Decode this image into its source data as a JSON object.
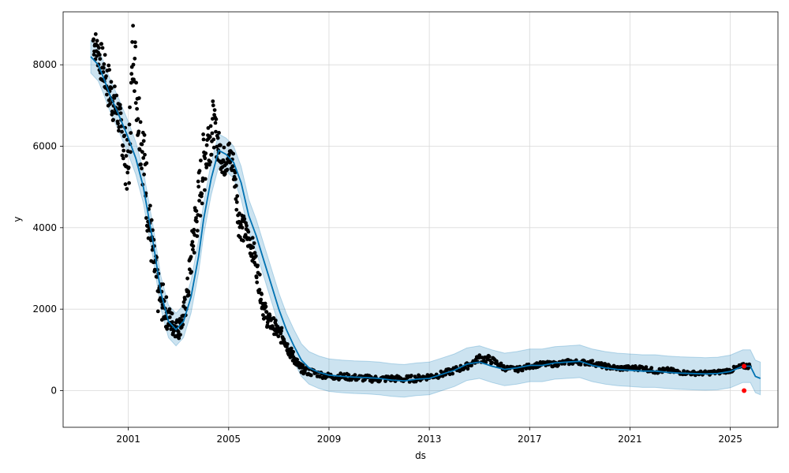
{
  "chart_data": {
    "type": "scatter",
    "xlabel": "ds",
    "ylabel": "y",
    "xlim": [
      1998.4,
      2026.9
    ],
    "ylim": [
      -900,
      9300
    ],
    "x_ticks": [
      2001,
      2005,
      2009,
      2013,
      2017,
      2021,
      2025
    ],
    "x_tick_labels": [
      "2001",
      "2005",
      "2009",
      "2013",
      "2017",
      "2021",
      "2025"
    ],
    "y_ticks": [
      0,
      2000,
      4000,
      6000,
      8000
    ],
    "y_tick_labels": [
      "0",
      "2000",
      "4000",
      "6000",
      "8000"
    ],
    "grid": true,
    "colors": {
      "observed": "#000000",
      "forecast": "#0072B2",
      "interval": "#0072B2",
      "highlight": "#ff0000"
    },
    "series": [
      {
        "kind": "observed",
        "x": [
          1999.6,
          1999.8,
          2000.0,
          2000.2,
          2000.4,
          2000.6,
          2000.8,
          2001.0,
          2001.2,
          2001.4,
          2001.6,
          2001.8,
          2002.0,
          2002.2,
          2002.4,
          2002.6,
          2002.8,
          2003.0,
          2003.2,
          2003.4,
          2003.6,
          2003.8,
          2004.0,
          2004.2,
          2004.4,
          2004.6,
          2004.8,
          2005.0,
          2005.2,
          2005.4,
          2005.6,
          2005.8,
          2006.0,
          2006.2,
          2006.4,
          2006.6,
          2006.8,
          2007.0,
          2007.2,
          2007.4,
          2007.6,
          2007.8,
          2008.0,
          2008.5,
          2009.0,
          2009.5,
          2010.0,
          2010.5,
          2011.0,
          2011.5,
          2012.0,
          2012.5,
          2013.0,
          2013.5,
          2014.0,
          2014.5,
          2015.0,
          2015.5,
          2016.0,
          2016.5,
          2017.0,
          2017.5,
          2018.0,
          2018.5,
          2019.0,
          2019.5,
          2020.0,
          2020.5,
          2021.0,
          2021.5,
          2022.0,
          2022.5,
          2023.0,
          2023.5,
          2024.0,
          2024.5,
          2025.0,
          2025.5
        ],
        "y": [
          8600,
          8300,
          7900,
          7500,
          7100,
          6800,
          6100,
          5300,
          8600,
          6800,
          5800,
          4400,
          3200,
          2400,
          2100,
          1800,
          1600,
          1500,
          1800,
          2600,
          3800,
          4600,
          5600,
          6200,
          6500,
          6000,
          5600,
          5800,
          5500,
          4200,
          4000,
          3700,
          3400,
          2700,
          2000,
          1700,
          1600,
          1400,
          1300,
          1000,
          800,
          600,
          500,
          420,
          350,
          350,
          320,
          300,
          280,
          300,
          280,
          300,
          350,
          400,
          500,
          600,
          800,
          750,
          550,
          520,
          600,
          650,
          650,
          700,
          700,
          680,
          600,
          550,
          550,
          560,
          480,
          500,
          450,
          430,
          430,
          450,
          500,
          600
        ],
        "spread": [
          400,
          500,
          500,
          600,
          500,
          500,
          700,
          900,
          900,
          900,
          900,
          700,
          600,
          500,
          400,
          300,
          250,
          250,
          350,
          500,
          700,
          800,
          900,
          700,
          500,
          400,
          400,
          400,
          400,
          400,
          300,
          300,
          300,
          300,
          250,
          200,
          200,
          200,
          150,
          150,
          120,
          100,
          100,
          80,
          80,
          80,
          80,
          80,
          80,
          80,
          80,
          80,
          80,
          80,
          80,
          80,
          100,
          80,
          60,
          60,
          60,
          60,
          60,
          60,
          60,
          60,
          60,
          60,
          60,
          60,
          60,
          60,
          50,
          50,
          50,
          50,
          60,
          60
        ]
      },
      {
        "kind": "highlight",
        "x": [
          2025.55,
          2025.55
        ],
        "y": [
          600,
          0
        ]
      },
      {
        "kind": "forecast",
        "x": [
          1999.5,
          1999.8,
          2000.0,
          2000.3,
          2000.6,
          2001.0,
          2001.3,
          2001.6,
          2002.0,
          2002.3,
          2002.6,
          2002.9,
          2003.2,
          2003.5,
          2003.8,
          2004.0,
          2004.3,
          2004.6,
          2004.9,
          2005.2,
          2005.5,
          2005.8,
          2006.1,
          2006.4,
          2006.7,
          2007.0,
          2007.3,
          2007.6,
          2007.9,
          2008.2,
          2008.6,
          2009.0,
          2009.5,
          2010.0,
          2010.5,
          2011.0,
          2011.5,
          2012.0,
          2012.5,
          2013.0,
          2013.5,
          2014.0,
          2014.5,
          2015.0,
          2015.5,
          2016.0,
          2016.5,
          2017.0,
          2017.5,
          2018.0,
          2018.5,
          2019.0,
          2019.5,
          2020.0,
          2020.5,
          2021.0,
          2021.5,
          2022.0,
          2022.5,
          2023.0,
          2023.5,
          2024.0,
          2024.5,
          2025.0,
          2025.5,
          2025.8,
          2026.0,
          2026.2
        ],
        "y": [
          8200,
          8000,
          7700,
          7200,
          6800,
          6200,
          5700,
          5000,
          3600,
          2400,
          1700,
          1500,
          1700,
          2300,
          3300,
          4200,
          5200,
          5900,
          5800,
          5600,
          5100,
          4300,
          3800,
          3200,
          2600,
          2000,
          1500,
          1100,
          750,
          560,
          450,
          380,
          350,
          330,
          320,
          300,
          260,
          240,
          280,
          300,
          400,
          500,
          650,
          700,
          600,
          520,
          560,
          620,
          620,
          680,
          700,
          720,
          620,
          560,
          520,
          500,
          480,
          480,
          450,
          430,
          420,
          410,
          420,
          470,
          600,
          600,
          350,
          300
        ],
        "upper": [
          8600,
          8400,
          8100,
          7600,
          7200,
          6600,
          6100,
          5400,
          4000,
          2800,
          2100,
          1900,
          2100,
          2700,
          3700,
          4600,
          5600,
          6300,
          6200,
          6000,
          5500,
          4700,
          4200,
          3600,
          3000,
          2400,
          1900,
          1500,
          1150,
          960,
          850,
          780,
          750,
          730,
          720,
          700,
          660,
          640,
          680,
          700,
          800,
          900,
          1050,
          1100,
          1000,
          920,
          960,
          1020,
          1020,
          1080,
          1100,
          1120,
          1020,
          960,
          920,
          900,
          880,
          880,
          850,
          830,
          820,
          810,
          820,
          870,
          1000,
          1000,
          750,
          700
        ],
        "lower": [
          7800,
          7600,
          7300,
          6800,
          6400,
          5800,
          5300,
          4600,
          3200,
          2000,
          1300,
          1100,
          1300,
          1900,
          2900,
          3800,
          4800,
          5500,
          5400,
          5200,
          4700,
          3900,
          3400,
          2800,
          2200,
          1600,
          1100,
          700,
          350,
          160,
          50,
          -20,
          -50,
          -70,
          -80,
          -100,
          -140,
          -160,
          -120,
          -100,
          0,
          100,
          250,
          300,
          200,
          120,
          160,
          220,
          220,
          280,
          300,
          320,
          220,
          160,
          120,
          100,
          80,
          80,
          50,
          30,
          20,
          10,
          20,
          70,
          200,
          200,
          -50,
          -100
        ]
      }
    ]
  }
}
